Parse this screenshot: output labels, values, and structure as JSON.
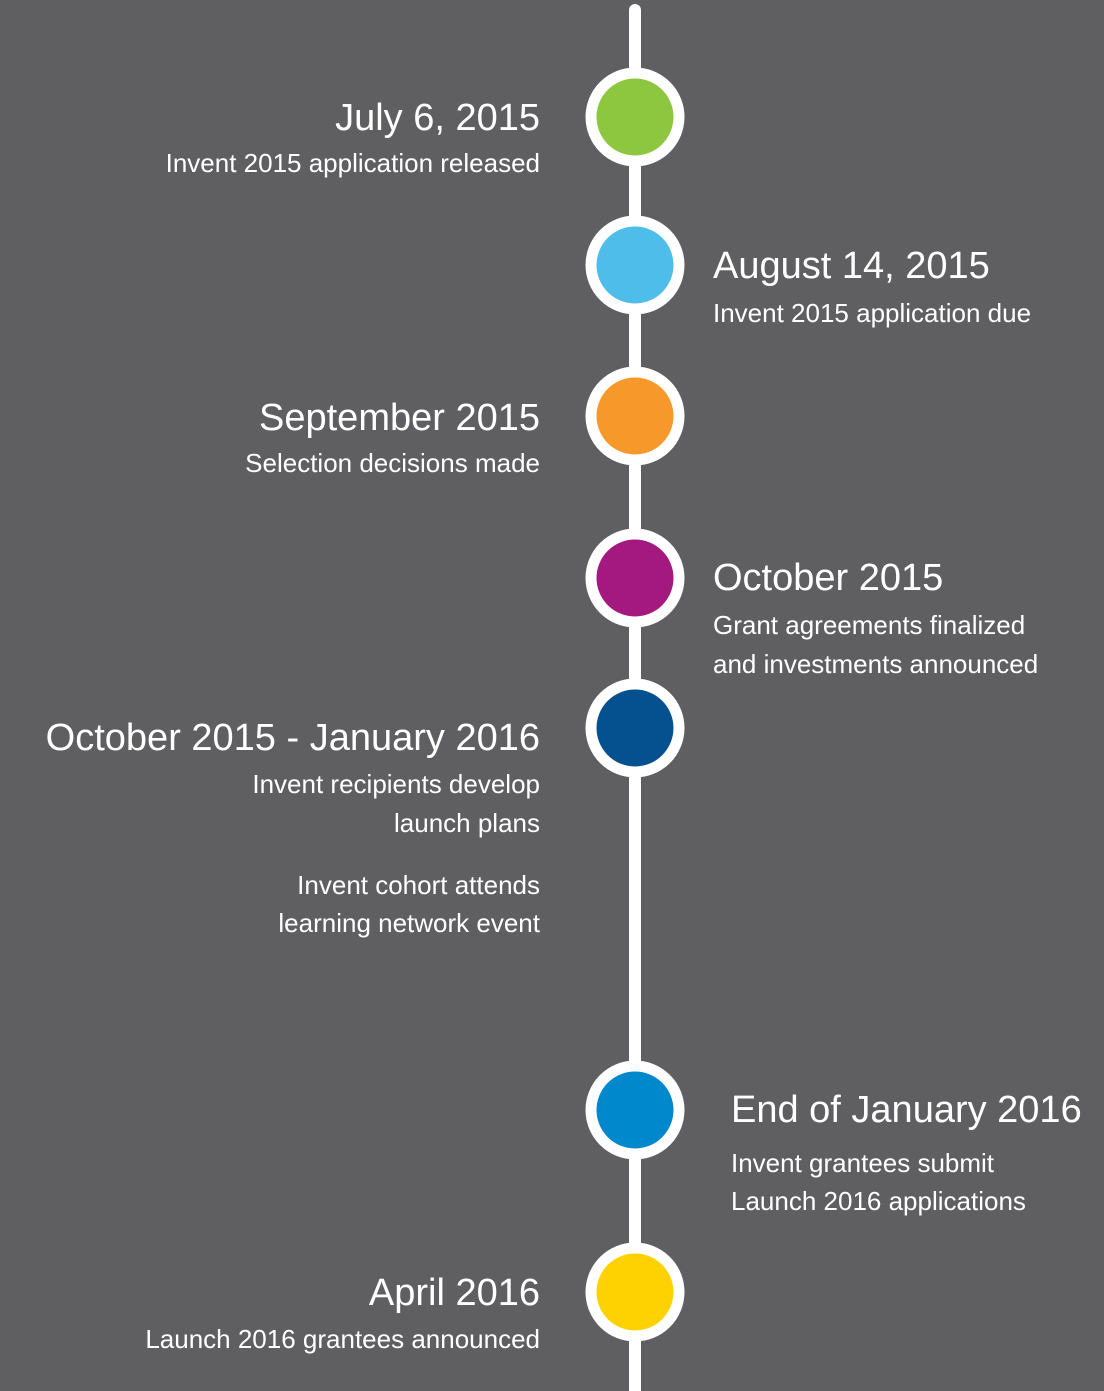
{
  "timeline": {
    "events": [
      {
        "date": "July 6, 2015",
        "color": "#8dc63f",
        "details": [
          [
            "Invent 2015 application released"
          ]
        ]
      },
      {
        "date": "August 14, 2015",
        "color": "#4fbde9",
        "details": [
          [
            "Invent 2015 application due"
          ]
        ]
      },
      {
        "date": "September 2015",
        "color": "#f7982a",
        "details": [
          [
            "Selection decisions made"
          ]
        ]
      },
      {
        "date": "October 2015",
        "color": "#a3197f",
        "details": [
          [
            "Grant agreements finalized",
            "and investments announced"
          ]
        ]
      },
      {
        "date": "October 2015 - January 2016",
        "color": "#05508f",
        "details": [
          [
            "Invent recipients develop",
            "launch plans"
          ],
          [
            "Invent cohort attends",
            "learning network event"
          ]
        ]
      },
      {
        "date": "End of January 2016",
        "color": "#0088cc",
        "details": [
          [
            "Invent grantees submit",
            "Launch 2016 applications"
          ]
        ]
      },
      {
        "date": "April 2016",
        "color": "#fdd200",
        "details": [
          [
            "Launch 2016 grantees announced"
          ]
        ]
      }
    ]
  }
}
